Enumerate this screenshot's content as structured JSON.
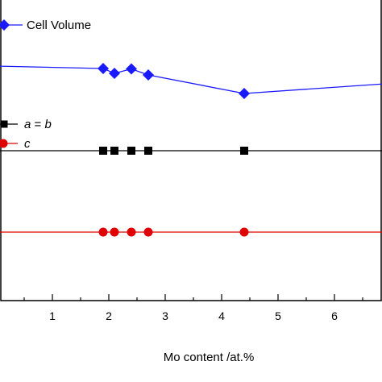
{
  "chart_data": {
    "type": "line",
    "xlabel": "Mo content /at.%",
    "ylabel": "",
    "x_ticks": [
      "1",
      "2",
      "3",
      "4",
      "5",
      "6"
    ],
    "xlim": [
      0,
      7
    ],
    "grid": false,
    "x": [
      0,
      1.9,
      2.1,
      2.4,
      2.7,
      4.4,
      7
    ],
    "series": [
      {
        "name": "Cell Volume",
        "label_plain": "Cell Volume",
        "color": "#1a1aff",
        "marker": "diamond",
        "values": [
          18,
          15,
          9,
          14.5,
          7,
          -16,
          -3.5
        ],
        "marker_mask": [
          false,
          true,
          true,
          true,
          true,
          true,
          true
        ]
      },
      {
        "name": "a = b",
        "label_parts": [
          "a",
          " = ",
          "b"
        ],
        "color": "#000000",
        "marker": "square",
        "values": [
          -87,
          -87,
          -87,
          -87,
          -87,
          -87,
          -87
        ],
        "marker_mask": [
          false,
          true,
          true,
          true,
          true,
          true,
          false
        ]
      },
      {
        "name": "c",
        "label_parts": [
          "c"
        ],
        "color": "#e00000",
        "marker": "circle",
        "values": [
          -188,
          -188,
          -188,
          -188,
          -188,
          -188,
          -188
        ],
        "marker_mask": [
          false,
          true,
          true,
          true,
          true,
          true,
          false
        ]
      }
    ],
    "ylim": [
      -290,
      58
    ],
    "legend_placement": "left"
  }
}
